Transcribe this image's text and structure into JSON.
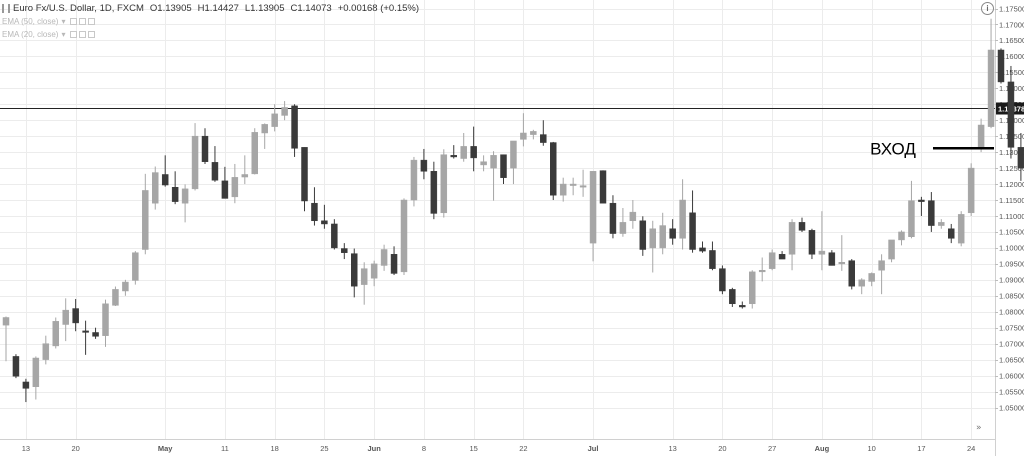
{
  "header": {
    "symbol": "Euro Fx/U.S. Dollar, 1D, FXCM",
    "open": "O1.13905",
    "high": "H1.14427",
    "low": "L1.13905",
    "close": "C1.14073",
    "change": "+0.00168 (+0.15%)",
    "ema1": "EMA (50, close)",
    "ema2": "EMA (20, close)"
  },
  "info_icon": "info-icon",
  "colors": {
    "up": "#a6a6a6",
    "down": "#3a3a3a",
    "line": "#222222",
    "entry": "#000000"
  },
  "chart_data": {
    "type": "candlestick",
    "title": "Euro Fx/U.S. Dollar, 1D, FXCM",
    "xlabel": "",
    "ylabel": "",
    "ylim": [
      1.045,
      1.177
    ],
    "grid": true,
    "y_ticks": [
      "1.05000",
      "1.05500",
      "1.06000",
      "1.06500",
      "1.07000",
      "1.07500",
      "1.08000",
      "1.08500",
      "1.09000",
      "1.09500",
      "1.10000",
      "1.10500",
      "1.11000",
      "1.11500",
      "1.12000",
      "1.12500",
      "1.13000",
      "1.13500",
      "1.14000",
      "1.14500",
      "1.15000",
      "1.15500",
      "1.16000",
      "1.16500",
      "1.17000",
      "1.17500"
    ],
    "x_labels": [
      {
        "label": "13",
        "i": 2
      },
      {
        "label": "20",
        "i": 7
      },
      {
        "label": "May",
        "i": 16
      },
      {
        "label": "11",
        "i": 22
      },
      {
        "label": "18",
        "i": 27
      },
      {
        "label": "25",
        "i": 32
      },
      {
        "label": "Jun",
        "i": 37
      },
      {
        "label": "8",
        "i": 42
      },
      {
        "label": "15",
        "i": 47
      },
      {
        "label": "22",
        "i": 52
      },
      {
        "label": "Jul",
        "i": 59
      },
      {
        "label": "13",
        "i": 67
      },
      {
        "label": "20",
        "i": 72
      },
      {
        "label": "27",
        "i": 77
      },
      {
        "label": "Aug",
        "i": 82
      },
      {
        "label": "10",
        "i": 87
      },
      {
        "label": "17",
        "i": 92
      },
      {
        "label": "24",
        "i": 97
      }
    ],
    "horizontal_line": {
      "value": 1.14378,
      "label": "1.14378"
    },
    "annotation": {
      "text": "ВХОД",
      "level": 1.1312
    },
    "candles": [
      {
        "o": 1.0758,
        "h": 1.0785,
        "l": 1.0645,
        "c": 1.0782
      },
      {
        "o": 1.066,
        "h": 1.0667,
        "l": 1.0592,
        "c": 1.0598
      },
      {
        "o": 1.058,
        "h": 1.059,
        "l": 1.0517,
        "c": 1.056
      },
      {
        "o": 1.0565,
        "h": 1.066,
        "l": 1.0525,
        "c": 1.0655
      },
      {
        "o": 1.065,
        "h": 1.0725,
        "l": 1.0635,
        "c": 1.07
      },
      {
        "o": 1.0693,
        "h": 1.0782,
        "l": 1.0685,
        "c": 1.077
      },
      {
        "o": 1.076,
        "h": 1.0842,
        "l": 1.0708,
        "c": 1.0805
      },
      {
        "o": 1.081,
        "h": 1.084,
        "l": 1.0739,
        "c": 1.0765
      },
      {
        "o": 1.074,
        "h": 1.0772,
        "l": 1.0665,
        "c": 1.0738
      },
      {
        "o": 1.0735,
        "h": 1.075,
        "l": 1.0715,
        "c": 1.0723
      },
      {
        "o": 1.0725,
        "h": 1.0838,
        "l": 1.069,
        "c": 1.0825
      },
      {
        "o": 1.082,
        "h": 1.0879,
        "l": 1.0818,
        "c": 1.087
      },
      {
        "o": 1.0865,
        "h": 1.09,
        "l": 1.085,
        "c": 1.0893
      },
      {
        "o": 1.0898,
        "h": 1.099,
        "l": 1.0885,
        "c": 1.0985
      },
      {
        "o": 1.0995,
        "h": 1.1232,
        "l": 1.098,
        "c": 1.118
      },
      {
        "o": 1.114,
        "h": 1.1255,
        "l": 1.112,
        "c": 1.1236
      },
      {
        "o": 1.123,
        "h": 1.129,
        "l": 1.1192,
        "c": 1.1197
      },
      {
        "o": 1.119,
        "h": 1.124,
        "l": 1.1137,
        "c": 1.1145
      },
      {
        "o": 1.114,
        "h": 1.1199,
        "l": 1.108,
        "c": 1.1185
      },
      {
        "o": 1.1185,
        "h": 1.1391,
        "l": 1.118,
        "c": 1.135
      },
      {
        "o": 1.135,
        "h": 1.1375,
        "l": 1.1263,
        "c": 1.127
      },
      {
        "o": 1.1268,
        "h": 1.1319,
        "l": 1.1207,
        "c": 1.1212
      },
      {
        "o": 1.121,
        "h": 1.1254,
        "l": 1.1155,
        "c": 1.1155
      },
      {
        "o": 1.116,
        "h": 1.1263,
        "l": 1.114,
        "c": 1.1221
      },
      {
        "o": 1.1222,
        "h": 1.129,
        "l": 1.12,
        "c": 1.123
      },
      {
        "o": 1.1232,
        "h": 1.1375,
        "l": 1.123,
        "c": 1.1362
      },
      {
        "o": 1.136,
        "h": 1.139,
        "l": 1.131,
        "c": 1.1387
      },
      {
        "o": 1.138,
        "h": 1.145,
        "l": 1.1365,
        "c": 1.142
      },
      {
        "o": 1.1415,
        "h": 1.146,
        "l": 1.14,
        "c": 1.144
      },
      {
        "o": 1.1445,
        "h": 1.145,
        "l": 1.1285,
        "c": 1.1312
      },
      {
        "o": 1.1315,
        "h": 1.1315,
        "l": 1.1115,
        "c": 1.1147
      },
      {
        "o": 1.114,
        "h": 1.119,
        "l": 1.107,
        "c": 1.1085
      },
      {
        "o": 1.1085,
        "h": 1.1135,
        "l": 1.106,
        "c": 1.1075
      },
      {
        "o": 1.1075,
        "h": 1.109,
        "l": 1.0995,
        "c": 1.1
      },
      {
        "o": 1.0998,
        "h": 1.1015,
        "l": 1.0965,
        "c": 1.0985
      },
      {
        "o": 1.0982,
        "h": 1.0998,
        "l": 1.0845,
        "c": 1.088
      },
      {
        "o": 1.0885,
        "h": 1.0955,
        "l": 1.0822,
        "c": 1.0935
      },
      {
        "o": 1.0905,
        "h": 1.096,
        "l": 1.088,
        "c": 1.095
      },
      {
        "o": 1.0945,
        "h": 1.101,
        "l": 1.0928,
        "c": 1.0995
      },
      {
        "o": 1.098,
        "h": 1.1005,
        "l": 1.0915,
        "c": 1.092
      },
      {
        "o": 1.0925,
        "h": 1.1155,
        "l": 1.0915,
        "c": 1.115
      },
      {
        "o": 1.115,
        "h": 1.1285,
        "l": 1.113,
        "c": 1.1275
      },
      {
        "o": 1.1275,
        "h": 1.131,
        "l": 1.1215,
        "c": 1.124
      },
      {
        "o": 1.124,
        "h": 1.127,
        "l": 1.109,
        "c": 1.1108
      },
      {
        "o": 1.111,
        "h": 1.1309,
        "l": 1.1095,
        "c": 1.1292
      },
      {
        "o": 1.129,
        "h": 1.1322,
        "l": 1.128,
        "c": 1.1285
      },
      {
        "o": 1.128,
        "h": 1.136,
        "l": 1.127,
        "c": 1.1318
      },
      {
        "o": 1.1318,
        "h": 1.138,
        "l": 1.124,
        "c": 1.1282
      },
      {
        "o": 1.126,
        "h": 1.129,
        "l": 1.124,
        "c": 1.127
      },
      {
        "o": 1.125,
        "h": 1.1303,
        "l": 1.1148,
        "c": 1.129
      },
      {
        "o": 1.1292,
        "h": 1.1292,
        "l": 1.12,
        "c": 1.122
      },
      {
        "o": 1.125,
        "h": 1.1325,
        "l": 1.12,
        "c": 1.1335
      },
      {
        "o": 1.134,
        "h": 1.1422,
        "l": 1.1318,
        "c": 1.136
      },
      {
        "o": 1.1355,
        "h": 1.137,
        "l": 1.134,
        "c": 1.1365
      },
      {
        "o": 1.1355,
        "h": 1.14,
        "l": 1.132,
        "c": 1.133
      },
      {
        "o": 1.133,
        "h": 1.1332,
        "l": 1.115,
        "c": 1.1165
      },
      {
        "o": 1.1165,
        "h": 1.122,
        "l": 1.1145,
        "c": 1.12
      },
      {
        "o": 1.12,
        "h": 1.122,
        "l": 1.1165,
        "c": 1.12
      },
      {
        "o": 1.1195,
        "h": 1.1245,
        "l": 1.116,
        "c": 1.1195
      },
      {
        "o": 1.1015,
        "h": 1.124,
        "l": 1.0958,
        "c": 1.124
      },
      {
        "o": 1.1242,
        "h": 1.1243,
        "l": 1.114,
        "c": 1.114
      },
      {
        "o": 1.114,
        "h": 1.1165,
        "l": 1.103,
        "c": 1.1045
      },
      {
        "o": 1.1045,
        "h": 1.1125,
        "l": 1.1035,
        "c": 1.108
      },
      {
        "o": 1.1085,
        "h": 1.115,
        "l": 1.106,
        "c": 1.1112
      },
      {
        "o": 1.1085,
        "h": 1.1099,
        "l": 1.0975,
        "c": 1.0995
      },
      {
        "o": 1.1,
        "h": 1.1085,
        "l": 1.0923,
        "c": 1.106
      },
      {
        "o": 1.1,
        "h": 1.111,
        "l": 1.098,
        "c": 1.107
      },
      {
        "o": 1.106,
        "h": 1.109,
        "l": 1.101,
        "c": 1.103
      },
      {
        "o": 1.103,
        "h": 1.1215,
        "l": 1.0995,
        "c": 1.115
      },
      {
        "o": 1.111,
        "h": 1.118,
        "l": 1.0985,
        "c": 1.0995
      },
      {
        "o": 1.1,
        "h": 1.102,
        "l": 1.0985,
        "c": 1.099
      },
      {
        "o": 1.0992,
        "h": 1.102,
        "l": 1.093,
        "c": 1.0935
      },
      {
        "o": 1.0935,
        "h": 1.0945,
        "l": 1.0855,
        "c": 1.0865
      },
      {
        "o": 1.087,
        "h": 1.0875,
        "l": 1.0815,
        "c": 1.0825
      },
      {
        "o": 1.082,
        "h": 1.0832,
        "l": 1.081,
        "c": 1.0815
      },
      {
        "o": 1.0825,
        "h": 1.093,
        "l": 1.081,
        "c": 1.0925
      },
      {
        "o": 1.0925,
        "h": 1.097,
        "l": 1.0895,
        "c": 1.093
      },
      {
        "o": 1.0935,
        "h": 1.0995,
        "l": 1.093,
        "c": 1.0985
      },
      {
        "o": 1.098,
        "h": 1.099,
        "l": 1.0965,
        "c": 1.0965
      },
      {
        "o": 1.098,
        "h": 1.109,
        "l": 1.093,
        "c": 1.108
      },
      {
        "o": 1.108,
        "h": 1.1095,
        "l": 1.105,
        "c": 1.1055
      },
      {
        "o": 1.1055,
        "h": 1.106,
        "l": 1.0965,
        "c": 1.098
      },
      {
        "o": 1.098,
        "h": 1.1115,
        "l": 1.093,
        "c": 1.099
      },
      {
        "o": 1.0985,
        "h": 1.0993,
        "l": 1.0945,
        "c": 1.0945
      },
      {
        "o": 1.095,
        "h": 1.104,
        "l": 1.0928,
        "c": 1.0955
      },
      {
        "o": 1.096,
        "h": 1.0965,
        "l": 1.087,
        "c": 1.088
      },
      {
        "o": 1.088,
        "h": 1.0905,
        "l": 1.0855,
        "c": 1.09
      },
      {
        "o": 1.0895,
        "h": 1.0923,
        "l": 1.088,
        "c": 1.092
      },
      {
        "o": 1.093,
        "h": 1.098,
        "l": 1.0855,
        "c": 1.096
      },
      {
        "o": 1.0965,
        "h": 1.102,
        "l": 1.0955,
        "c": 1.1025
      },
      {
        "o": 1.1025,
        "h": 1.1055,
        "l": 1.1008,
        "c": 1.105
      },
      {
        "o": 1.1035,
        "h": 1.121,
        "l": 1.103,
        "c": 1.1148
      },
      {
        "o": 1.115,
        "h": 1.116,
        "l": 1.11,
        "c": 1.1145
      },
      {
        "o": 1.1148,
        "h": 1.1175,
        "l": 1.105,
        "c": 1.107
      },
      {
        "o": 1.107,
        "h": 1.109,
        "l": 1.106,
        "c": 1.108
      },
      {
        "o": 1.106,
        "h": 1.1075,
        "l": 1.1015,
        "c": 1.103
      },
      {
        "o": 1.1015,
        "h": 1.1115,
        "l": 1.1005,
        "c": 1.1105
      },
      {
        "o": 1.111,
        "h": 1.1265,
        "l": 1.11,
        "c": 1.125
      },
      {
        "o": 1.131,
        "h": 1.1405,
        "l": 1.13,
        "c": 1.1385
      },
      {
        "o": 1.138,
        "h": 1.1718,
        "l": 1.1375,
        "c": 1.162
      },
      {
        "o": 1.162,
        "h": 1.1625,
        "l": 1.1515,
        "c": 1.152
      },
      {
        "o": 1.152,
        "h": 1.157,
        "l": 1.128,
        "c": 1.1315
      },
      {
        "o": 1.1315,
        "h": 1.136,
        "l": 1.121,
        "c": 1.125
      },
      {
        "o": 1.125,
        "h": 1.125,
        "l": 1.116,
        "c": 1.118
      }
    ]
  }
}
